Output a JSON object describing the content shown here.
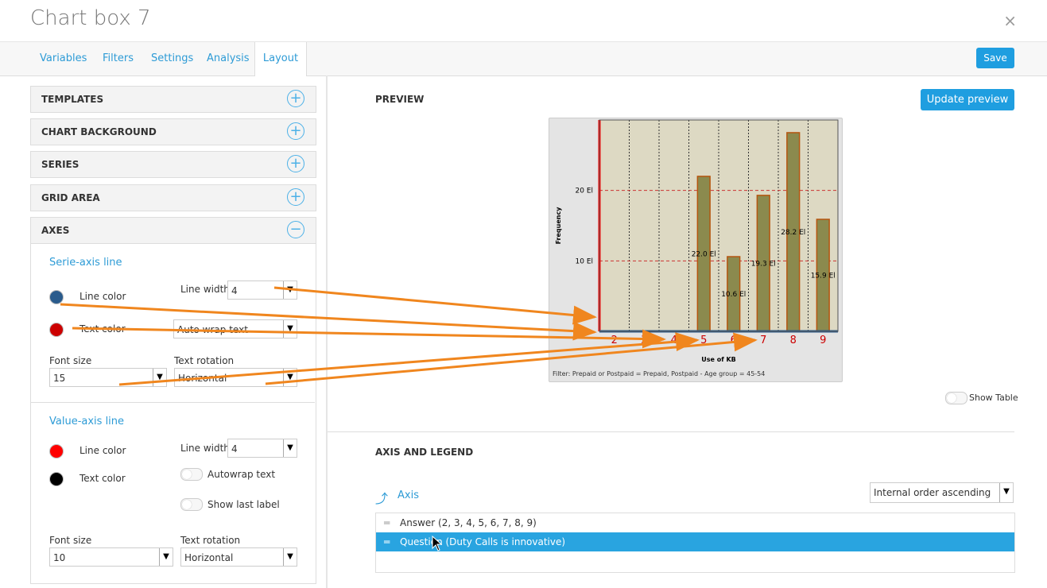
{
  "dialog": {
    "title": "Chart box 7",
    "close_glyph": "×"
  },
  "tabs": [
    {
      "label": "Variables"
    },
    {
      "label": "Filters"
    },
    {
      "label": "Settings"
    },
    {
      "label": "Analysis"
    },
    {
      "label": "Layout",
      "active": true
    }
  ],
  "save_label": "Save",
  "accordion": [
    {
      "label": "TEMPLATES",
      "state": "+"
    },
    {
      "label": "CHART BACKGROUND",
      "state": "+"
    },
    {
      "label": "SERIES",
      "state": "+"
    },
    {
      "label": "GRID AREA",
      "state": "+"
    },
    {
      "label": "AXES",
      "state": "−"
    }
  ],
  "serie_axis": {
    "heading": "Serie-axis line",
    "line_color_label": "Line color",
    "line_color": "#2a5b8c",
    "line_width_label": "Line width",
    "line_width": "4",
    "text_color_label": "Text color",
    "text_color": "#cc0000",
    "text_wrap_value": "Auto wrap text",
    "font_size_label": "Font size",
    "font_size": "15",
    "text_rotation_label": "Text rotation",
    "text_rotation": "Horizontal"
  },
  "value_axis": {
    "heading": "Value-axis line",
    "line_color_label": "Line color",
    "line_color": "#ff0000",
    "line_width_label": "Line width",
    "line_width": "4",
    "text_color_label": "Text color",
    "text_color": "#000000",
    "autowrap_label": "Autowrap text",
    "show_last_label": "Show last label",
    "font_size_label": "Font size",
    "font_size": "10",
    "text_rotation_label": "Text rotation",
    "text_rotation": "Horizontal"
  },
  "preview": {
    "heading": "PREVIEW",
    "update_label": "Update preview",
    "show_table_label": "Show Table"
  },
  "chart_data": {
    "type": "bar",
    "categories": [
      "2",
      "3",
      "4",
      "5",
      "6",
      "7",
      "8",
      "9"
    ],
    "values": [
      0,
      0,
      0,
      22.0,
      10.6,
      19.3,
      28.2,
      15.9
    ],
    "data_labels": [
      "",
      "",
      "",
      "22.0 El",
      "10.6 El",
      "19.3 El",
      "28.2 El",
      "15.9 El"
    ],
    "ylabel": "Frequency",
    "xlabel": "Use of KB",
    "yticks": [
      {
        "v": 10,
        "label": "10 El"
      },
      {
        "v": 20,
        "label": "20 El"
      }
    ],
    "ylim": [
      0,
      30
    ],
    "filter": "Filter: Prepaid or Postpaid = Prepaid, Postpaid - Age group = 45-54",
    "colors": {
      "bar": "#8b8a4e",
      "bar_edge": "#b5550f",
      "plot_bg": "#ddd9c3",
      "outer_bg": "#e4e4e4",
      "value_axis": "#ff0000",
      "serie_axis": "#2a5b8c",
      "tick_label": "#cc0000",
      "grid": "#cc3333"
    }
  },
  "axis_legend": {
    "heading": "AXIS AND LEGEND",
    "axis_label": "Axis",
    "order_value": "Internal order ascending",
    "rows": [
      {
        "label": "Answer (2, 3, 4, 5, 6, 7, 8, 9)"
      },
      {
        "label": "Question (Duty Calls is innovative)",
        "selected": true
      }
    ]
  }
}
